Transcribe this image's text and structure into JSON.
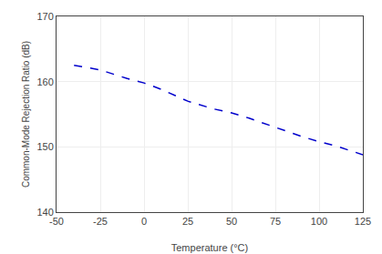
{
  "chart_data": {
    "type": "line",
    "x": [
      -40,
      -35,
      -25,
      -10,
      0,
      10,
      25,
      40,
      50,
      60,
      75,
      90,
      100,
      110,
      125
    ],
    "values": [
      162.5,
      162.3,
      161.8,
      160.5,
      159.8,
      158.8,
      157.0,
      155.8,
      155.2,
      154.4,
      153.0,
      151.6,
      150.8,
      150.1,
      148.8
    ],
    "color": "#0000cc",
    "line_style": "dashed",
    "xlabel": "Temperature (°C)",
    "ylabel": "Common-Mode Rejection Ratio (dB)",
    "xlim": [
      -50,
      125
    ],
    "ylim": [
      140,
      170
    ],
    "xticks": [
      -50,
      -25,
      0,
      25,
      50,
      75,
      100,
      125
    ],
    "yticks": [
      140,
      150,
      160,
      170
    ],
    "grid": true
  }
}
